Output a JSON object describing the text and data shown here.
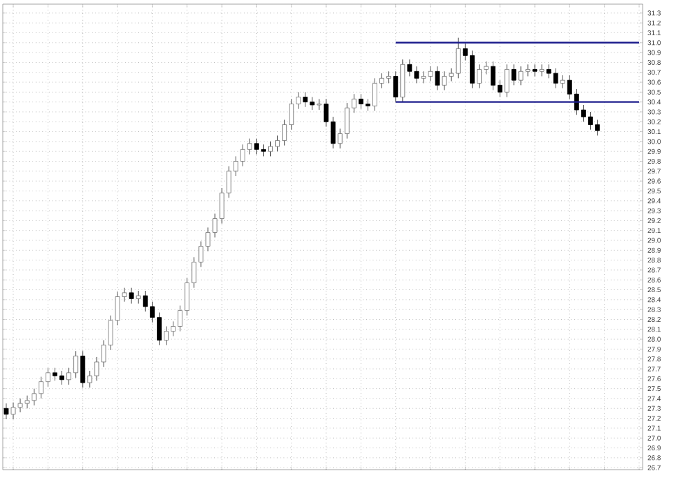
{
  "chart_data": {
    "type": "candlestick",
    "categories": [
      null,
      null,
      null,
      null,
      null,
      null,
      null,
      null,
      null,
      null,
      null,
      null,
      null,
      null,
      null,
      null,
      null,
      null,
      null,
      null,
      null,
      null,
      null,
      null,
      null,
      null,
      null,
      null,
      null,
      null,
      null,
      null,
      null,
      null,
      null,
      null,
      null,
      null,
      null,
      null,
      null,
      null,
      null,
      null,
      null,
      null,
      null,
      null,
      null,
      null,
      null,
      null,
      null,
      null,
      null,
      null,
      null,
      null,
      null,
      null,
      null,
      null,
      null,
      null,
      null,
      null,
      null,
      null,
      null,
      null,
      null,
      null,
      null,
      null,
      null,
      null,
      null,
      null,
      null,
      null,
      null,
      null,
      null,
      null,
      null,
      null,
      null,
      null,
      null,
      null,
      null,
      null
    ],
    "ohlc": [
      [
        27.3,
        27.35,
        27.19,
        27.24
      ],
      [
        27.24,
        27.36,
        27.19,
        27.31
      ],
      [
        27.31,
        27.4,
        27.26,
        27.35
      ],
      [
        27.35,
        27.43,
        27.3,
        27.38
      ],
      [
        27.38,
        27.5,
        27.33,
        27.45
      ],
      [
        27.45,
        27.62,
        27.4,
        27.57
      ],
      [
        27.57,
        27.71,
        27.52,
        27.66
      ],
      [
        27.66,
        27.71,
        27.58,
        27.63
      ],
      [
        27.63,
        27.68,
        27.54,
        27.59
      ],
      [
        27.59,
        27.71,
        27.54,
        27.66
      ],
      [
        27.66,
        27.88,
        27.61,
        27.83
      ],
      [
        27.83,
        27.88,
        27.51,
        27.56
      ],
      [
        27.56,
        27.68,
        27.51,
        27.63
      ],
      [
        27.63,
        27.82,
        27.58,
        27.77
      ],
      [
        27.77,
        27.99,
        27.72,
        27.94
      ],
      [
        27.94,
        28.24,
        27.89,
        28.19
      ],
      [
        28.19,
        28.48,
        28.14,
        28.43
      ],
      [
        28.43,
        28.52,
        28.38,
        28.47
      ],
      [
        28.47,
        28.52,
        28.36,
        28.41
      ],
      [
        28.41,
        28.49,
        28.36,
        28.44
      ],
      [
        28.44,
        28.49,
        28.28,
        28.33
      ],
      [
        28.33,
        28.38,
        28.17,
        28.22
      ],
      [
        28.22,
        28.27,
        27.94,
        27.99
      ],
      [
        27.99,
        28.13,
        27.94,
        28.08
      ],
      [
        28.08,
        28.18,
        28.03,
        28.13
      ],
      [
        28.13,
        28.34,
        28.08,
        28.29
      ],
      [
        28.29,
        28.62,
        28.24,
        28.57
      ],
      [
        28.57,
        28.83,
        28.52,
        28.78
      ],
      [
        28.78,
        28.99,
        28.73,
        28.94
      ],
      [
        28.94,
        29.13,
        28.89,
        29.08
      ],
      [
        29.08,
        29.27,
        29.03,
        29.22
      ],
      [
        29.22,
        29.53,
        29.17,
        29.48
      ],
      [
        29.48,
        29.75,
        29.43,
        29.7
      ],
      [
        29.7,
        29.85,
        29.65,
        29.8
      ],
      [
        29.8,
        29.97,
        29.75,
        29.92
      ],
      [
        29.92,
        30.03,
        29.87,
        29.98
      ],
      [
        29.98,
        30.03,
        29.87,
        29.92
      ],
      [
        29.92,
        29.97,
        29.85,
        29.9
      ],
      [
        29.9,
        30.0,
        29.85,
        29.95
      ],
      [
        29.95,
        30.06,
        29.9,
        30.01
      ],
      [
        30.01,
        30.22,
        29.96,
        30.17
      ],
      [
        30.17,
        30.43,
        30.12,
        30.38
      ],
      [
        30.38,
        30.5,
        30.33,
        30.45
      ],
      [
        30.45,
        30.5,
        30.35,
        30.4
      ],
      [
        30.4,
        30.45,
        30.32,
        30.37
      ],
      [
        30.37,
        30.43,
        30.32,
        30.38
      ],
      [
        30.38,
        30.43,
        30.15,
        30.2
      ],
      [
        30.2,
        30.25,
        29.93,
        29.98
      ],
      [
        29.98,
        30.13,
        29.93,
        30.08
      ],
      [
        30.08,
        30.39,
        30.03,
        30.34
      ],
      [
        30.34,
        30.48,
        30.29,
        30.43
      ],
      [
        30.43,
        30.48,
        30.33,
        30.38
      ],
      [
        30.38,
        30.43,
        30.31,
        30.36
      ],
      [
        30.36,
        30.64,
        30.31,
        30.59
      ],
      [
        30.59,
        30.69,
        30.54,
        30.64
      ],
      [
        30.64,
        30.71,
        30.59,
        30.66
      ],
      [
        30.66,
        30.71,
        30.4,
        30.45
      ],
      [
        30.45,
        30.83,
        30.4,
        30.78
      ],
      [
        30.78,
        30.83,
        30.66,
        30.71
      ],
      [
        30.71,
        30.76,
        30.59,
        30.64
      ],
      [
        30.64,
        30.71,
        30.59,
        30.66
      ],
      [
        30.66,
        30.76,
        30.61,
        30.71
      ],
      [
        30.71,
        30.76,
        30.52,
        30.57
      ],
      [
        30.57,
        30.71,
        30.52,
        30.66
      ],
      [
        30.66,
        30.74,
        30.61,
        30.69
      ],
      [
        30.69,
        31.05,
        30.64,
        30.94
      ],
      [
        30.94,
        30.99,
        30.82,
        30.87
      ],
      [
        30.87,
        30.92,
        30.54,
        30.59
      ],
      [
        30.59,
        30.78,
        30.54,
        30.73
      ],
      [
        30.73,
        30.81,
        30.68,
        30.76
      ],
      [
        30.76,
        30.81,
        30.52,
        30.57
      ],
      [
        30.57,
        30.62,
        30.45,
        30.5
      ],
      [
        30.5,
        30.78,
        30.45,
        30.73
      ],
      [
        30.73,
        30.78,
        30.57,
        30.62
      ],
      [
        30.62,
        30.76,
        30.57,
        30.71
      ],
      [
        30.71,
        30.78,
        30.66,
        30.73
      ],
      [
        30.73,
        30.78,
        30.66,
        30.71
      ],
      [
        30.71,
        30.78,
        30.66,
        30.73
      ],
      [
        30.73,
        30.78,
        30.64,
        30.69
      ],
      [
        30.69,
        30.74,
        30.54,
        30.59
      ],
      [
        30.59,
        30.67,
        30.54,
        30.62
      ],
      [
        30.62,
        30.67,
        30.43,
        30.48
      ],
      [
        30.48,
        30.53,
        30.27,
        30.32
      ],
      [
        30.32,
        30.37,
        30.2,
        30.25
      ],
      [
        30.25,
        30.3,
        30.12,
        30.17
      ],
      [
        30.17,
        30.22,
        30.06,
        30.11
      ],
      null,
      null,
      null,
      null,
      null,
      null
    ],
    "ylim": [
      26.68,
      31.39
    ],
    "yticks": [
      26.7,
      26.8,
      26.9,
      {
        "value": 27,
        "label": "27.0"
      },
      27.1,
      27.2,
      27.3,
      27.4,
      27.5,
      27.6,
      27.7,
      27.8,
      27.9,
      {
        "value": 28,
        "label": "28.0"
      },
      28.1,
      28.2,
      28.3,
      28.4,
      28.5,
      28.6,
      28.7,
      28.8,
      28.9,
      {
        "value": 29,
        "label": "29.0"
      },
      29.1,
      29.2,
      29.3,
      29.4,
      29.5,
      29.6,
      29.7,
      29.8,
      29.9,
      {
        "value": 30,
        "label": "30.0"
      },
      30.1,
      30.2,
      30.3,
      30.4,
      30.5,
      30.6,
      30.7,
      30.8,
      30.9,
      {
        "value": 31,
        "label": "31.0"
      },
      31.1,
      31.2,
      31.3
    ],
    "tick_labels": "y",
    "grid": true,
    "series": [
      {
        "type": "line",
        "color": "#1c1c8c",
        "values": [
          null,
          null,
          null,
          null,
          null,
          null,
          null,
          null,
          null,
          null,
          null,
          null,
          null,
          null,
          null,
          null,
          null,
          null,
          null,
          null,
          null,
          null,
          null,
          null,
          null,
          null,
          null,
          null,
          null,
          null,
          null,
          null,
          null,
          null,
          null,
          null,
          null,
          null,
          null,
          null,
          null,
          null,
          null,
          null,
          null,
          null,
          null,
          null,
          null,
          null,
          null,
          null,
          null,
          null,
          null,
          null,
          31.0,
          31.0,
          31.0,
          31.0,
          31.0,
          31.0,
          31.0,
          31.0,
          31.0,
          31.0,
          31.0,
          31.0,
          31.0,
          31.0,
          31.0,
          31.0,
          31.0,
          31.0,
          31.0,
          31.0,
          31.0,
          31.0,
          31.0,
          31.0,
          31.0,
          31.0,
          31.0,
          31.0,
          31.0,
          31.0,
          31.0,
          31.0,
          31.0,
          31.0,
          31.0,
          31.0
        ]
      },
      {
        "type": "line",
        "color": "#1c1c8c",
        "values": [
          null,
          null,
          null,
          null,
          null,
          null,
          null,
          null,
          null,
          null,
          null,
          null,
          null,
          null,
          null,
          null,
          null,
          null,
          null,
          null,
          null,
          null,
          null,
          null,
          null,
          null,
          null,
          null,
          null,
          null,
          null,
          null,
          null,
          null,
          null,
          null,
          null,
          null,
          null,
          null,
          null,
          null,
          null,
          null,
          null,
          null,
          null,
          null,
          null,
          null,
          null,
          null,
          null,
          null,
          null,
          null,
          30.4,
          30.4,
          30.4,
          30.4,
          30.4,
          30.4,
          30.4,
          30.4,
          30.4,
          30.4,
          30.4,
          30.4,
          30.4,
          30.4,
          30.4,
          30.4,
          30.4,
          30.4,
          30.4,
          30.4,
          30.4,
          30.4,
          30.4,
          30.4,
          30.4,
          30.4,
          30.4,
          30.4,
          30.4,
          30.4,
          30.4,
          30.4,
          30.4,
          30.4,
          30.4,
          30.4
        ]
      }
    ]
  }
}
